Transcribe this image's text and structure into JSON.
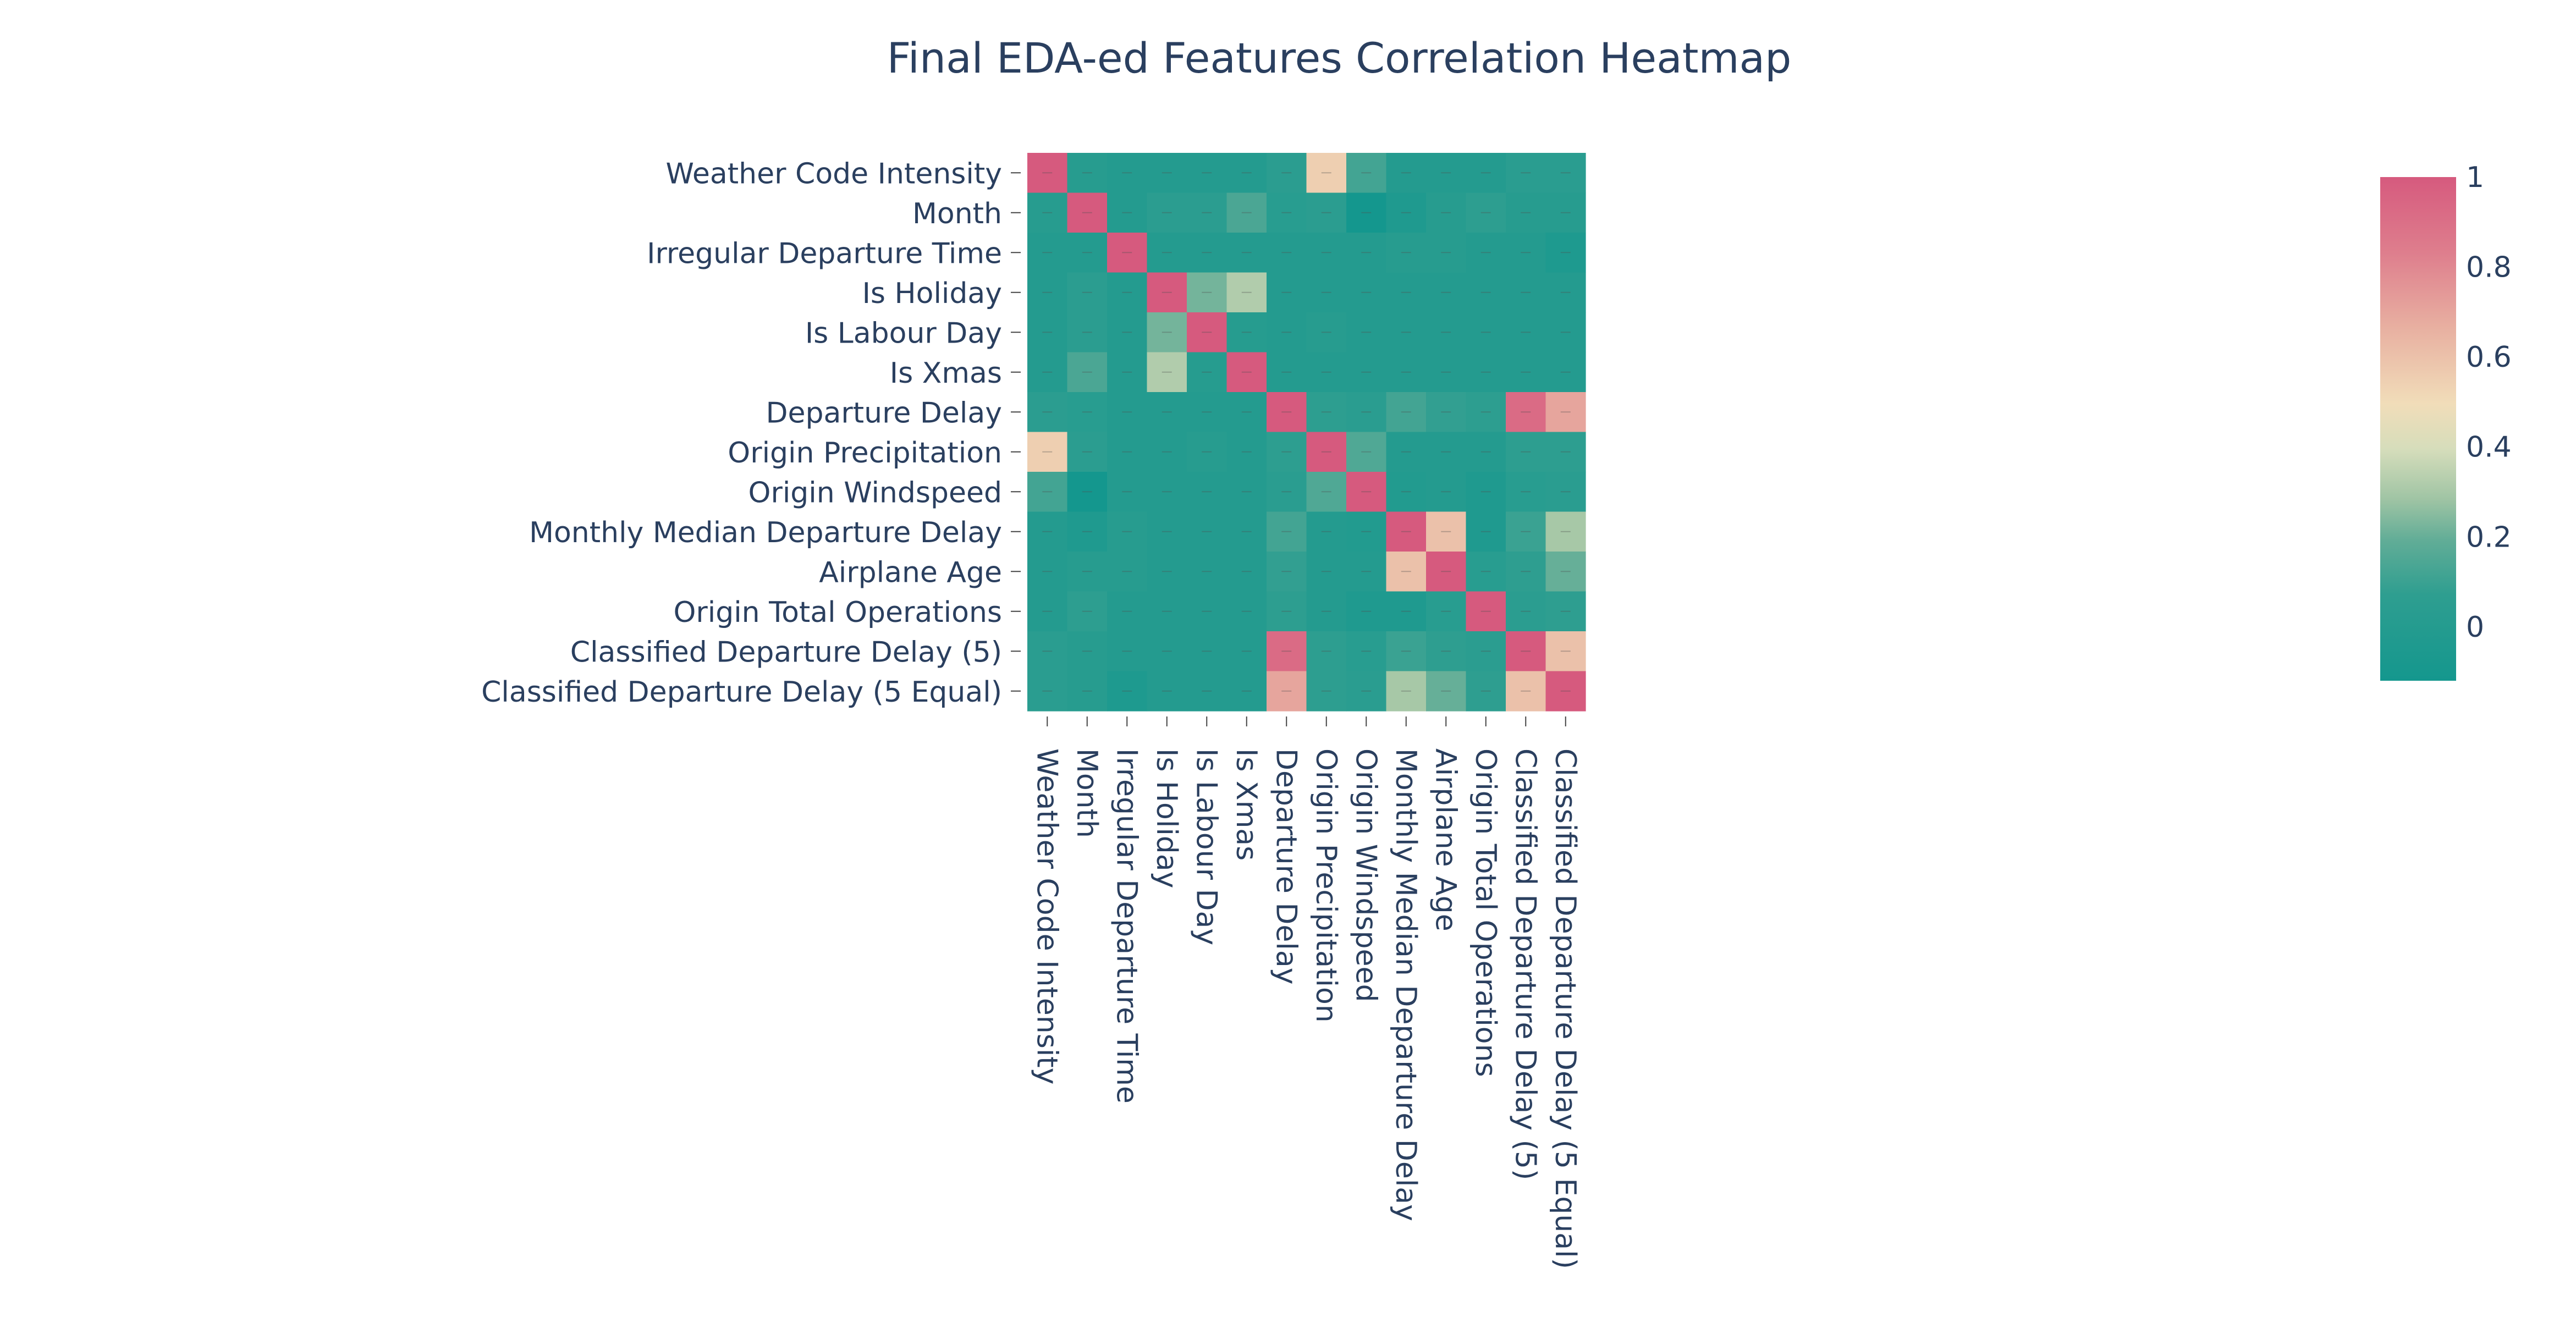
{
  "chart_data": {
    "type": "heatmap",
    "title": "Final EDA-ed Features Correlation Heatmap",
    "labels": [
      "Weather Code Intensity",
      "Month",
      "Irregular Departure Time",
      "Is Holiday",
      "Is Labour Day",
      "Is Xmas",
      "Departure Delay",
      "Origin Precipitation",
      "Origin Windspeed",
      "Monthly Median Departure Delay",
      "Airplane Age",
      "Origin Total Operations",
      "Classified Departure Delay (5)",
      "Classified Departure Delay (5 Equal)"
    ],
    "z": [
      [
        1.0,
        0.02,
        0.0,
        0.0,
        0.0,
        0.0,
        0.05,
        0.55,
        0.12,
        0.0,
        0.0,
        0.0,
        0.04,
        0.04
      ],
      [
        0.02,
        1.0,
        0.0,
        0.05,
        0.05,
        0.14,
        0.03,
        0.05,
        -0.12,
        -0.04,
        0.02,
        0.06,
        0.02,
        0.02
      ],
      [
        0.0,
        0.0,
        1.0,
        0.0,
        0.0,
        0.0,
        0.0,
        0.0,
        0.0,
        0.02,
        0.02,
        0.0,
        0.0,
        -0.05
      ],
      [
        0.0,
        0.05,
        0.0,
        1.0,
        0.22,
        0.32,
        0.0,
        0.0,
        0.0,
        0.0,
        0.0,
        0.0,
        0.0,
        0.0
      ],
      [
        0.0,
        0.05,
        0.0,
        0.22,
        1.0,
        0.01,
        0.0,
        0.02,
        0.0,
        0.0,
        0.0,
        0.0,
        0.0,
        0.0
      ],
      [
        0.0,
        0.14,
        0.0,
        0.32,
        0.01,
        1.0,
        0.0,
        0.0,
        0.0,
        0.0,
        0.0,
        0.0,
        0.0,
        0.0
      ],
      [
        0.05,
        0.03,
        0.0,
        0.0,
        0.0,
        0.0,
        1.0,
        0.06,
        0.04,
        0.12,
        0.08,
        0.06,
        0.92,
        0.7
      ],
      [
        0.55,
        0.05,
        0.0,
        0.0,
        0.02,
        0.0,
        0.06,
        1.0,
        0.15,
        0.0,
        0.0,
        0.0,
        0.06,
        0.06
      ],
      [
        0.12,
        -0.12,
        0.0,
        0.0,
        0.0,
        0.0,
        0.04,
        0.15,
        1.0,
        -0.02,
        0.0,
        -0.04,
        0.03,
        0.04
      ],
      [
        0.0,
        -0.04,
        0.02,
        0.0,
        0.0,
        0.0,
        0.12,
        0.0,
        -0.02,
        1.0,
        0.6,
        -0.04,
        0.1,
        0.3
      ],
      [
        0.0,
        0.02,
        0.02,
        0.0,
        0.0,
        0.0,
        0.08,
        0.0,
        0.0,
        0.6,
        1.0,
        0.03,
        0.07,
        0.2
      ],
      [
        0.0,
        0.06,
        0.0,
        0.0,
        0.0,
        0.0,
        0.06,
        0.0,
        -0.04,
        -0.04,
        0.03,
        1.0,
        0.05,
        0.07
      ],
      [
        0.04,
        0.02,
        0.0,
        0.0,
        0.0,
        0.0,
        0.92,
        0.06,
        0.03,
        0.1,
        0.07,
        0.05,
        1.0,
        0.6
      ],
      [
        0.04,
        0.02,
        -0.05,
        0.0,
        0.0,
        0.0,
        0.7,
        0.06,
        0.04,
        0.3,
        0.2,
        0.07,
        0.6,
        1.0
      ]
    ],
    "zmin": -0.12,
    "zmax": 1.0,
    "colorbar": {
      "ticks": [
        "0",
        "0.2",
        "0.4",
        "0.6",
        "0.8",
        "1"
      ],
      "tick_values": [
        0,
        0.2,
        0.4,
        0.6,
        0.8,
        1.0
      ]
    },
    "colorscale": [
      [
        0.0,
        "#14978e"
      ],
      [
        0.17,
        "#2e9e90"
      ],
      [
        0.28,
        "#62ad97"
      ],
      [
        0.36,
        "#9fc4a4"
      ],
      [
        0.46,
        "#d6ddbb"
      ],
      [
        0.55,
        "#f1ddb9"
      ],
      [
        0.7,
        "#e8b0a1"
      ],
      [
        0.85,
        "#de7e8d"
      ],
      [
        1.0,
        "#d65a7e"
      ]
    ]
  }
}
